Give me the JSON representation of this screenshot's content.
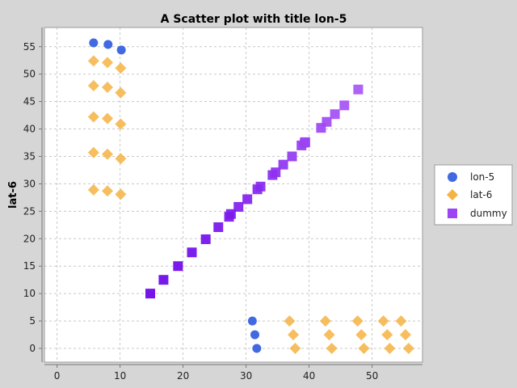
{
  "chart_data": {
    "type": "scatter",
    "title": "A Scatter plot with title lon-5",
    "xlabel": "",
    "ylabel": "lat-6",
    "xlim": [
      -2,
      58
    ],
    "ylim": [
      -2.5,
      58.5
    ],
    "xticks": [
      0,
      10,
      20,
      30,
      40,
      50
    ],
    "yticks": [
      0,
      5,
      10,
      15,
      20,
      25,
      30,
      35,
      40,
      45,
      50,
      55
    ],
    "grid": true,
    "legend_position": "right",
    "series": [
      {
        "name": "lon-5",
        "marker": "circle",
        "color": "#4169e1",
        "points": [
          {
            "x": 5.8,
            "y": 55.7
          },
          {
            "x": 8.1,
            "y": 55.4
          },
          {
            "x": 10.2,
            "y": 54.4
          },
          {
            "x": 31,
            "y": 5
          },
          {
            "x": 31.4,
            "y": 2.5
          },
          {
            "x": 31.7,
            "y": 0
          }
        ]
      },
      {
        "name": "lat-6",
        "marker": "diamond",
        "color": "#f5b342",
        "points": [
          {
            "x": 5.8,
            "y": 52.4
          },
          {
            "x": 8,
            "y": 52.1
          },
          {
            "x": 10.1,
            "y": 51.1
          },
          {
            "x": 5.8,
            "y": 47.9
          },
          {
            "x": 8,
            "y": 47.6
          },
          {
            "x": 10.1,
            "y": 46.6
          },
          {
            "x": 5.8,
            "y": 42.2
          },
          {
            "x": 8,
            "y": 41.9
          },
          {
            "x": 10.1,
            "y": 40.9
          },
          {
            "x": 5.8,
            "y": 35.7
          },
          {
            "x": 8,
            "y": 35.4
          },
          {
            "x": 10.1,
            "y": 34.6
          },
          {
            "x": 5.8,
            "y": 28.9
          },
          {
            "x": 8,
            "y": 28.7
          },
          {
            "x": 10.1,
            "y": 28.1
          },
          {
            "x": 36.9,
            "y": 5
          },
          {
            "x": 37.5,
            "y": 2.5
          },
          {
            "x": 37.8,
            "y": 0
          },
          {
            "x": 42.6,
            "y": 5
          },
          {
            "x": 43.2,
            "y": 2.5
          },
          {
            "x": 43.6,
            "y": 0
          },
          {
            "x": 47.7,
            "y": 5
          },
          {
            "x": 48.3,
            "y": 2.5
          },
          {
            "x": 48.7,
            "y": 0
          },
          {
            "x": 51.8,
            "y": 5
          },
          {
            "x": 52.4,
            "y": 2.5
          },
          {
            "x": 52.8,
            "y": 0
          },
          {
            "x": 54.6,
            "y": 5
          },
          {
            "x": 55.3,
            "y": 2.5
          },
          {
            "x": 55.8,
            "y": 0
          }
        ]
      },
      {
        "name": "dummy",
        "marker": "square",
        "color_start": "#6a00e8",
        "color_end": "#a855f7",
        "points": [
          {
            "x": 14.8,
            "y": 10
          },
          {
            "x": 16.9,
            "y": 12.5
          },
          {
            "x": 19.2,
            "y": 15
          },
          {
            "x": 21.4,
            "y": 17.5
          },
          {
            "x": 23.6,
            "y": 19.9
          },
          {
            "x": 25.6,
            "y": 22.1
          },
          {
            "x": 27.3,
            "y": 24
          },
          {
            "x": 27.6,
            "y": 24.5
          },
          {
            "x": 28.8,
            "y": 25.8
          },
          {
            "x": 30.2,
            "y": 27.2
          },
          {
            "x": 31.8,
            "y": 29
          },
          {
            "x": 32.3,
            "y": 29.5
          },
          {
            "x": 34.2,
            "y": 31.6
          },
          {
            "x": 34.7,
            "y": 32.1
          },
          {
            "x": 35.9,
            "y": 33.5
          },
          {
            "x": 37.3,
            "y": 35
          },
          {
            "x": 38.8,
            "y": 37
          },
          {
            "x": 39.3,
            "y": 37.5
          },
          {
            "x": 39.4,
            "y": 37.6
          },
          {
            "x": 41.9,
            "y": 40.2
          },
          {
            "x": 42.8,
            "y": 41.3
          },
          {
            "x": 44.1,
            "y": 42.7
          },
          {
            "x": 45.6,
            "y": 44.3
          },
          {
            "x": 47.8,
            "y": 47.2
          }
        ]
      }
    ]
  }
}
